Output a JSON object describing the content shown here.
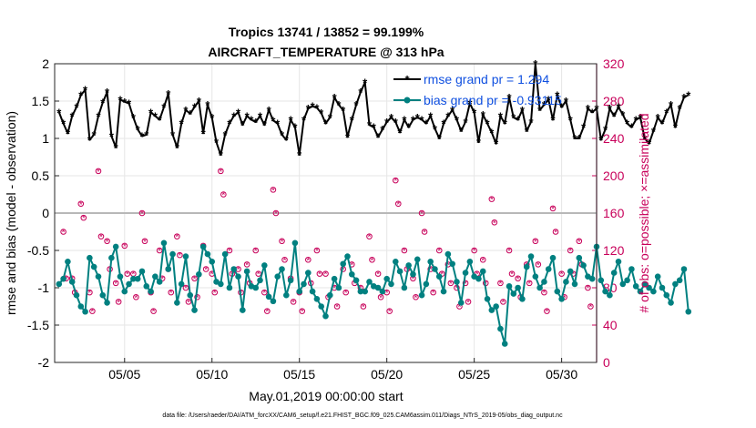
{
  "chart_data": {
    "type": "line",
    "title": "Tropics 13741 / 13852 = 99.199%",
    "subtitle": "AIRCRAFT_TEMPERATURE @ 313 hPa",
    "xlabel": "May.01,2019 00:00:00 start",
    "ylabel": "rmse and bias (model - observation)",
    "y2label": "# of obs: o=possible; ×=assimilated",
    "footnote": "data file: /Users/raeder/DAI/ATM_forcXX/CAM6_setup/f.e21.FHIST_BGC.f09_025.CAM6assim.011/Diags_NTrS_2019-05/obs_diag_output.nc",
    "xlim": [
      1,
      32
    ],
    "ylim": [
      -2,
      2
    ],
    "y2lim": [
      0,
      320
    ],
    "xticks": [
      5,
      10,
      15,
      20,
      25,
      30
    ],
    "xtick_labels": [
      "05/05",
      "05/10",
      "05/15",
      "05/20",
      "05/25",
      "05/30"
    ],
    "yticks": [
      -2,
      -1.5,
      -1,
      -0.5,
      0,
      0.5,
      1,
      1.5,
      2
    ],
    "ytick_labels": [
      "-2",
      "-1.5",
      "-1",
      "-0.5",
      "0",
      "0.5",
      "1",
      "1.5",
      "2"
    ],
    "y2ticks": [
      0,
      40,
      80,
      120,
      160,
      200,
      240,
      280,
      320
    ],
    "y2tick_labels": [
      "0",
      "40",
      "80",
      "120",
      "160",
      "200",
      "240",
      "280",
      "320"
    ],
    "grid": true,
    "legend_position": "top-right",
    "x_start": 1.25,
    "x_step": 0.25,
    "series": [
      {
        "name": "rmse grand pr = 1.294",
        "color": "#000000",
        "marker": "star",
        "values": [
          1.35,
          1.2,
          1.07,
          1.3,
          1.42,
          1.58,
          1.65,
          0.98,
          1.05,
          1.3,
          1.48,
          1.62,
          1.03,
          0.88,
          1.52,
          1.49,
          1.47,
          1.28,
          1.12,
          1.03,
          1.05,
          1.35,
          1.3,
          1.25,
          1.42,
          1.6,
          1.05,
          0.88,
          1.2,
          1.38,
          1.33,
          1.42,
          1.5,
          1.07,
          1.45,
          1.28,
          0.95,
          0.78,
          1.05,
          1.2,
          1.3,
          1.35,
          1.18,
          1.3,
          1.25,
          1.22,
          1.3,
          1.18,
          1.38,
          1.24,
          1.2,
          1.05,
          0.98,
          1.25,
          1.15,
          0.78,
          1.25,
          1.4,
          1.43,
          1.41,
          1.34,
          1.2,
          1.28,
          1.55,
          1.45,
          1.38,
          1.02,
          1.25,
          1.45,
          1.62,
          1.75,
          1.18,
          1.15,
          1.02,
          1.12,
          1.22,
          1.28,
          1.22,
          1.08,
          1.25,
          1.15,
          1.25,
          1.28,
          1.25,
          1.2,
          1.3,
          1.13,
          1.0,
          1.2,
          1.3,
          1.38,
          1.25,
          1.1,
          1.22,
          1.47,
          1.35,
          0.95,
          1.32,
          1.2,
          1.08,
          0.93,
          1.3,
          1.2,
          1.55,
          1.28,
          1.25,
          1.38,
          1.1,
          1.22,
          2.0,
          1.38,
          1.45,
          1.52,
          1.25,
          1.58,
          1.42,
          1.5,
          1.25,
          1.0,
          1.0,
          1.15,
          1.4,
          1.35,
          1.4,
          0.98,
          1.12,
          1.4,
          1.3,
          1.42,
          1.32,
          1.2,
          1.15,
          1.25,
          1.28,
          1.0,
          0.93,
          1.1,
          1.28,
          1.2,
          1.35,
          1.45,
          1.15,
          1.4,
          1.55,
          1.58
        ]
      },
      {
        "name": "bias grand pr = -0.93115",
        "color": "#008080",
        "marker": "dot",
        "values": [
          -0.95,
          -0.88,
          -0.65,
          -0.92,
          -1.1,
          -1.25,
          -1.32,
          -0.6,
          -0.72,
          -0.85,
          -1.1,
          -1.2,
          -0.6,
          -0.45,
          -0.85,
          -1.05,
          -0.95,
          -0.88,
          -0.88,
          -0.78,
          -0.98,
          -1.05,
          -0.85,
          -0.92,
          -0.4,
          -0.75,
          -0.55,
          -1.2,
          -0.95,
          -0.58,
          -1.1,
          -1.3,
          -0.82,
          -0.45,
          -0.55,
          -0.65,
          -0.92,
          -0.95,
          -0.55,
          -1.0,
          -0.75,
          -0.85,
          -1.3,
          -0.78,
          -0.98,
          -1.0,
          -0.9,
          -0.7,
          -1.12,
          -1.18,
          -0.85,
          -0.75,
          -1.1,
          -0.9,
          -0.4,
          -1.05,
          -0.95,
          -0.8,
          -1.05,
          -1.15,
          -1.25,
          -1.38,
          -1.1,
          -0.88,
          -1.0,
          -0.68,
          -0.58,
          -0.82,
          -0.9,
          -1.05,
          -1.05,
          -0.92,
          -0.98,
          -1.0,
          -1.05,
          -0.88,
          -0.95,
          -0.65,
          -0.78,
          -1.0,
          -0.7,
          -0.82,
          -0.62,
          -1.1,
          -0.95,
          -0.65,
          -0.75,
          -0.85,
          -1.05,
          -0.55,
          -0.68,
          -0.92,
          -1.2,
          -0.8,
          -0.65,
          -0.85,
          -0.88,
          -0.78,
          -1.15,
          -1.3,
          -1.25,
          -1.55,
          -1.75,
          -0.98,
          -1.08,
          -1.0,
          -1.15,
          -0.72,
          -0.58,
          -0.85,
          -1.0,
          -0.92,
          -0.75,
          -0.6,
          -1.05,
          -1.15,
          -0.92,
          -0.78,
          -0.95,
          -0.6,
          -0.7,
          -0.85,
          -0.88,
          -0.45,
          -0.9,
          -1.05,
          -1.1,
          -0.8,
          -0.65,
          -0.95,
          -0.9,
          -0.75,
          -0.98,
          -1.05,
          -0.95,
          -1.0,
          -1.05,
          -0.85,
          -1.0,
          -1.1,
          -1.2,
          -0.95,
          -0.9,
          -0.75,
          -1.32
        ]
      }
    ],
    "obs_counts": {
      "color": "#c8005a",
      "possible_marker": "circle",
      "assimilated_marker": "x",
      "x": [
        1.5,
        2.0,
        2.5,
        3.0,
        3.5,
        4.0,
        4.5,
        5.0,
        5.5,
        6.0,
        6.5,
        7.0,
        7.5,
        8.0,
        8.5,
        9.0,
        9.5,
        10.0,
        10.5,
        11.0,
        11.5,
        12.0,
        12.5,
        13.0,
        13.5,
        14.0,
        14.5,
        15.0,
        15.5,
        16.0,
        16.5,
        17.0,
        17.5,
        18.0,
        18.5,
        19.0,
        19.5,
        20.0,
        20.5,
        21.0,
        21.5,
        22.0,
        22.5,
        23.0,
        23.5,
        24.0,
        24.5,
        25.0,
        25.5,
        26.0,
        26.5,
        27.0,
        27.5,
        28.0,
        28.5,
        29.0,
        29.5,
        30.0,
        30.5,
        31.0,
        31.5
      ],
      "values": [
        140,
        90,
        170,
        75,
        205,
        130,
        85,
        125,
        95,
        160,
        75,
        120,
        100,
        135,
        80,
        90,
        125,
        95,
        205,
        120,
        100,
        105,
        120,
        75,
        185,
        130,
        90,
        75,
        110,
        120,
        95,
        80,
        100,
        105,
        80,
        135,
        95,
        75,
        195,
        120,
        90,
        160,
        100,
        120,
        105,
        80,
        85,
        120,
        110,
        175,
        85,
        120,
        90,
        105,
        130,
        75,
        165,
        95,
        120,
        130,
        80
      ],
      "values2": [
        90,
        75,
        155,
        55,
        135,
        100,
        65,
        95,
        70,
        130,
        55,
        90,
        75,
        115,
        65,
        70,
        100,
        75,
        180,
        95,
        75,
        85,
        95,
        55,
        160,
        110,
        65,
        55,
        85,
        95,
        70,
        60,
        75,
        85,
        60,
        110,
        70,
        55,
        170,
        100,
        70,
        140,
        75,
        95,
        85,
        60,
        65,
        95,
        85,
        150,
        65,
        95,
        70,
        85,
        105,
        55,
        140,
        70,
        95,
        105,
        60
      ]
    }
  }
}
